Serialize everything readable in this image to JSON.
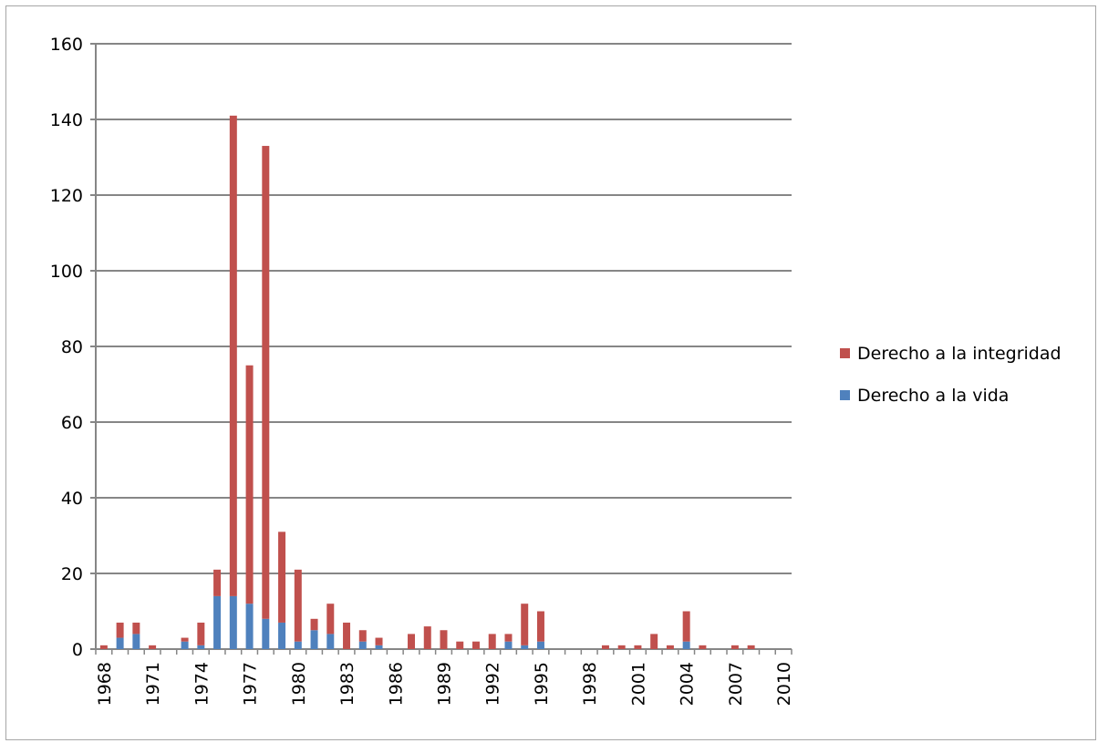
{
  "chart_data": {
    "type": "bar",
    "stacked": true,
    "title": "",
    "xlabel": "",
    "ylabel": "",
    "ylim": [
      0,
      160
    ],
    "y_ticks": [
      "0",
      "20",
      "40",
      "60",
      "80",
      "100",
      "120",
      "140",
      "160"
    ],
    "x_tick_labels": [
      "1968",
      "1971",
      "1974",
      "1977",
      "1980",
      "1983",
      "1986",
      "1989",
      "1992",
      "1995",
      "1998",
      "2001",
      "2004",
      "2007",
      "2010"
    ],
    "grid": "horizontal",
    "legend_position": "right",
    "categories": [
      "1968",
      "1969",
      "1970",
      "1971",
      "1972",
      "1973",
      "1974",
      "1975",
      "1976",
      "1977",
      "1978",
      "1979",
      "1980",
      "1981",
      "1982",
      "1983",
      "1984",
      "1985",
      "1986",
      "1987",
      "1988",
      "1989",
      "1990",
      "1991",
      "1992",
      "1993",
      "1994",
      "1995",
      "1996",
      "1997",
      "1998",
      "1999",
      "2000",
      "2001",
      "2002",
      "2003",
      "2004",
      "2005",
      "2006",
      "2007",
      "2008",
      "2009",
      "2010"
    ],
    "series": [
      {
        "name": "Derecho a la vida",
        "color": "#4f81bd",
        "values": [
          0,
          3,
          4,
          0,
          0,
          2,
          1,
          14,
          14,
          12,
          8,
          7,
          2,
          5,
          4,
          0,
          2,
          1,
          0,
          0,
          0,
          0,
          0,
          0,
          0,
          2,
          1,
          2,
          0,
          0,
          0,
          0,
          0,
          0,
          0,
          0,
          2,
          0,
          0,
          0,
          0,
          0,
          0
        ]
      },
      {
        "name": "Derecho a la integridad",
        "color": "#c0504d",
        "values": [
          1,
          4,
          3,
          1,
          0,
          1,
          6,
          7,
          127,
          63,
          125,
          24,
          19,
          3,
          8,
          7,
          3,
          2,
          0,
          4,
          6,
          5,
          2,
          2,
          4,
          2,
          11,
          8,
          0,
          0,
          0,
          1,
          1,
          1,
          4,
          1,
          8,
          1,
          0,
          1,
          1,
          0,
          0
        ]
      }
    ]
  }
}
